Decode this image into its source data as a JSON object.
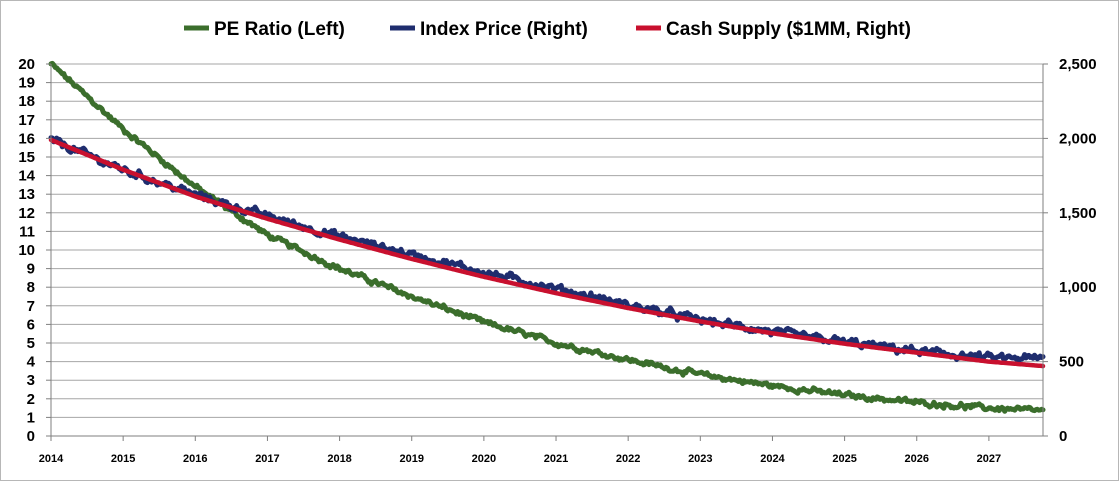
{
  "chart_data": {
    "type": "line",
    "title": "",
    "legend": {
      "placement": "top",
      "entries": [
        "PE Ratio (Left)",
        "Index Price (Right)",
        "Cash Supply ($1MM, Right)"
      ]
    },
    "x_axis": {
      "range": [
        2014,
        2027.75
      ],
      "ticks": [
        "2014",
        "2015",
        "2016",
        "2017",
        "2018",
        "2019",
        "2020",
        "2021",
        "2022",
        "2023",
        "2024",
        "2025",
        "2026",
        "2027"
      ]
    },
    "y_left": {
      "range": [
        0,
        20
      ],
      "ticks": [
        "0",
        "1",
        "2",
        "3",
        "4",
        "5",
        "6",
        "7",
        "8",
        "9",
        "10",
        "11",
        "12",
        "13",
        "14",
        "15",
        "16",
        "17",
        "18",
        "19",
        "20"
      ]
    },
    "y_right": {
      "range": [
        0,
        2500
      ],
      "ticks": [
        "0",
        "500",
        "1,000",
        "1,500",
        "2,000",
        "2,500"
      ]
    },
    "grid": true,
    "series": [
      {
        "name": "PE Ratio (Left)",
        "axis": "left",
        "color": "#3b6e2c",
        "noise": 0.12,
        "x": [
          2014,
          2015,
          2016,
          2017,
          2018,
          2019,
          2020,
          2021,
          2022,
          2023,
          2024,
          2025,
          2026,
          2027,
          2027.75
        ],
        "y": [
          20.0,
          16.5,
          13.4,
          10.8,
          9.0,
          7.5,
          6.1,
          5.0,
          4.1,
          3.3,
          2.7,
          2.2,
          1.8,
          1.5,
          1.35
        ]
      },
      {
        "name": "Index Price (Right)",
        "axis": "right",
        "color": "#1f2d6e",
        "noise": 22,
        "x": [
          2014,
          2015,
          2016,
          2017,
          2018,
          2019,
          2020,
          2021,
          2022,
          2023,
          2024,
          2025,
          2026,
          2027,
          2027.75
        ],
        "y": [
          1990,
          1790,
          1620,
          1475,
          1340,
          1220,
          1100,
          990,
          880,
          780,
          700,
          630,
          570,
          525,
          520
        ]
      },
      {
        "name": "Cash Supply ($1MM, Right)",
        "axis": "right",
        "color": "#c8102e",
        "noise": 0,
        "x": [
          2014,
          2015,
          2016,
          2017,
          2018,
          2019,
          2020,
          2021,
          2022,
          2023,
          2024,
          2025,
          2026,
          2027,
          2027.75
        ],
        "y": [
          1990,
          1790,
          1610,
          1460,
          1320,
          1190,
          1070,
          960,
          860,
          770,
          690,
          620,
          560,
          500,
          470
        ]
      }
    ]
  }
}
